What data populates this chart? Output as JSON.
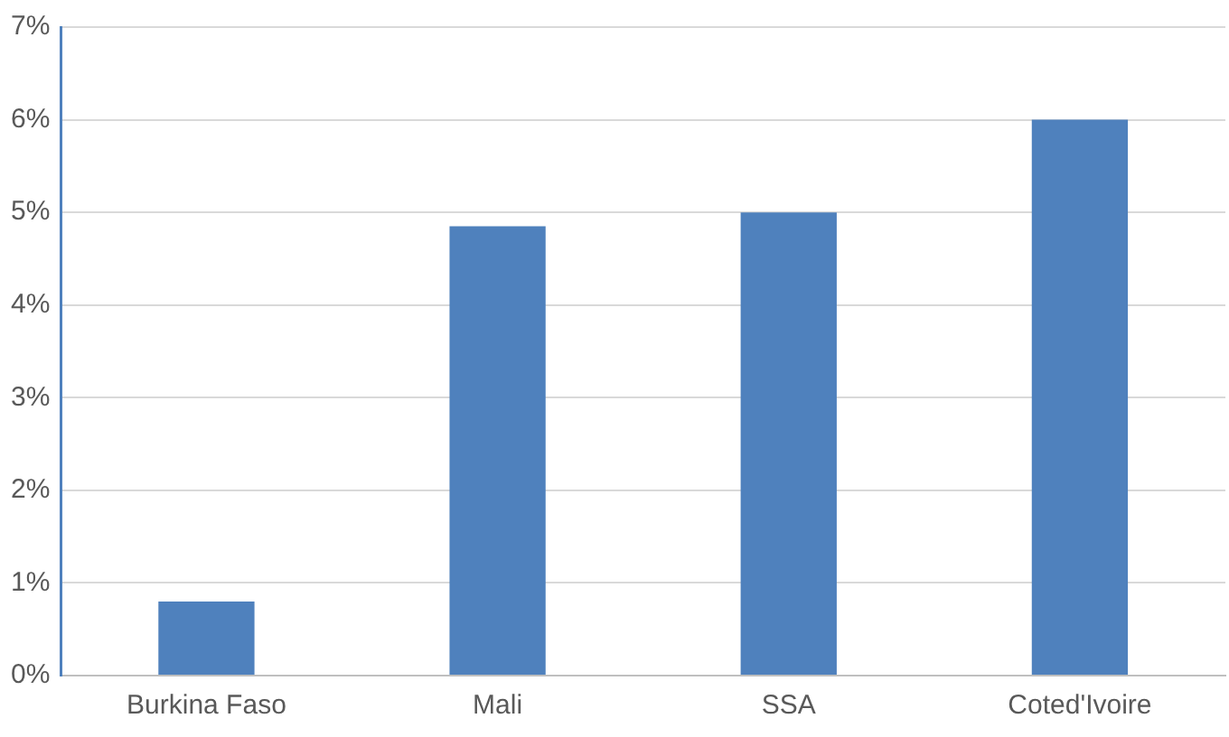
{
  "chart_data": {
    "type": "bar",
    "categories": [
      "Burkina Faso",
      "Mali",
      "SSA",
      "Coted'Ivoire"
    ],
    "values": [
      0.8,
      4.85,
      5.0,
      6.0
    ],
    "color": "#4f81bd",
    "ylim": [
      0,
      7
    ],
    "yticks": [
      {
        "value": 0,
        "label": "0%"
      },
      {
        "value": 1,
        "label": "1%"
      },
      {
        "value": 2,
        "label": "2%"
      },
      {
        "value": 3,
        "label": "3%"
      },
      {
        "value": 4,
        "label": "4%"
      },
      {
        "value": 5,
        "label": "5%"
      },
      {
        "value": 6,
        "label": "6%"
      },
      {
        "value": 7,
        "label": "7%"
      }
    ],
    "grid": "y",
    "legend": false
  }
}
